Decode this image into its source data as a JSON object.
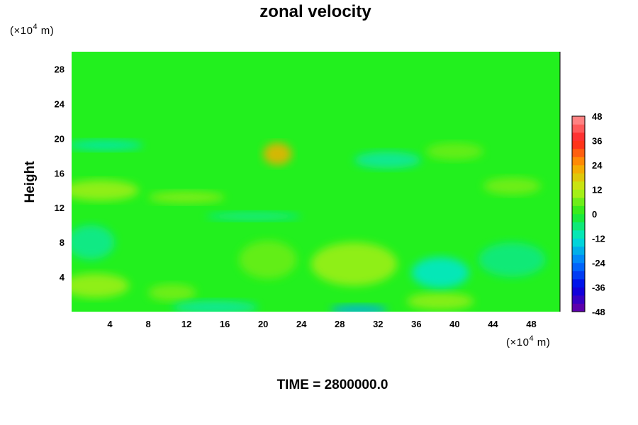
{
  "chart_data": {
    "type": "heatmap",
    "title": "zonal velocity",
    "ylabel": "Height",
    "x_unit_prefix": "(×10",
    "x_unit_exp": "4",
    "x_unit_suffix": " m)",
    "y_unit_prefix": "(×10",
    "y_unit_exp": "4",
    "y_unit_suffix": " m)",
    "xlim": [
      0,
      51
    ],
    "ylim": [
      0,
      30
    ],
    "x_ticks": [
      4,
      8,
      12,
      16,
      20,
      24,
      28,
      32,
      36,
      40,
      44,
      48
    ],
    "y_ticks": [
      4,
      8,
      12,
      16,
      20,
      24,
      28
    ],
    "colorbar": {
      "min": -48,
      "max": 48,
      "step": 4,
      "tick_labels": [
        48,
        36,
        24,
        12,
        0,
        -12,
        -24,
        -36,
        -48
      ]
    },
    "field_features": [
      {
        "x": 21.5,
        "y": 18.2,
        "value": 22,
        "rx": 1.5,
        "ry": 1.3
      },
      {
        "x": 2.5,
        "y": 3.0,
        "value": 10,
        "rx": 3.5,
        "ry": 1.4
      },
      {
        "x": 29.5,
        "y": 5.5,
        "value": 10,
        "rx": 4.5,
        "ry": 2.5
      },
      {
        "x": 20.5,
        "y": 6.0,
        "value": 6,
        "rx": 3.0,
        "ry": 2.2
      },
      {
        "x": 38.5,
        "y": 1.2,
        "value": 9,
        "rx": 3.5,
        "ry": 1.0
      },
      {
        "x": 10.5,
        "y": 2.2,
        "value": 7,
        "rx": 2.5,
        "ry": 1.0
      },
      {
        "x": 3.0,
        "y": 14.0,
        "value": 10,
        "rx": 4.0,
        "ry": 1.2
      },
      {
        "x": 12.0,
        "y": 13.2,
        "value": 8,
        "rx": 4.0,
        "ry": 0.7
      },
      {
        "x": 30.0,
        "y": 0.2,
        "value": -18,
        "rx": 3.0,
        "ry": 0.6
      },
      {
        "x": 38.5,
        "y": 4.5,
        "value": -12,
        "rx": 3.0,
        "ry": 1.8
      },
      {
        "x": 15.0,
        "y": 0.5,
        "value": -9,
        "rx": 4.5,
        "ry": 0.8
      },
      {
        "x": 2.0,
        "y": 8.0,
        "value": -8,
        "rx": 2.5,
        "ry": 2.0
      },
      {
        "x": 3.5,
        "y": 19.2,
        "value": -10,
        "rx": 4.0,
        "ry": 0.6
      },
      {
        "x": 33.0,
        "y": 17.5,
        "value": -9,
        "rx": 3.5,
        "ry": 1.0
      },
      {
        "x": 19.0,
        "y": 11.0,
        "value": -8,
        "rx": 5.0,
        "ry": 0.5
      },
      {
        "x": 46.0,
        "y": 6.0,
        "value": -7,
        "rx": 3.5,
        "ry": 2.0
      },
      {
        "x": 46.0,
        "y": 14.5,
        "value": 7,
        "rx": 3.0,
        "ry": 1.0
      },
      {
        "x": 40.0,
        "y": 18.5,
        "value": 6,
        "rx": 3.0,
        "ry": 1.0
      }
    ]
  },
  "footer": {
    "time_label": "TIME = 2800000.0"
  }
}
